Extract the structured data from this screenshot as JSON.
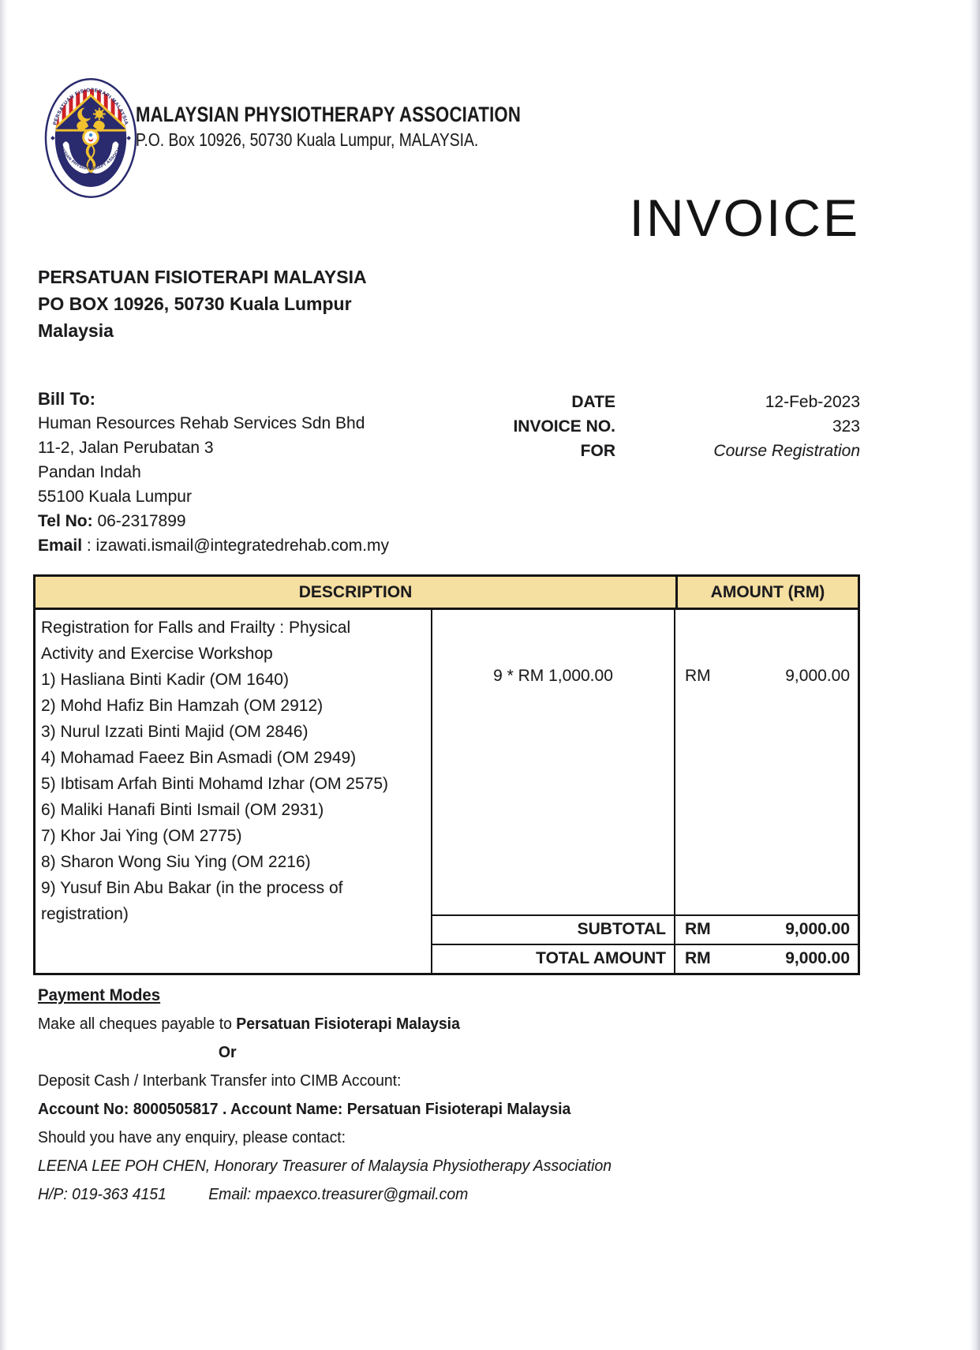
{
  "colors": {
    "table_header_bg": "#F5DFA1",
    "border": "#141414",
    "logo_navy": "#2A2A6E",
    "logo_red": "#CE2127",
    "logo_gold": "#F2C12E"
  },
  "header": {
    "org_name": "MALAYSIAN PHYSIOTHERAPY ASSOCIATION",
    "org_address": "P.O. Box 10926, 50730 Kuala Lumpur, MALAYSIA.",
    "doc_title": "INVOICE"
  },
  "logo": {
    "ring_top": "PERSATUAN FISIOTERAPI MALAYSIA",
    "ring_bottom": "MALAYSIAN PHYSIOTHERAPY ASSOCIATION"
  },
  "from_address": {
    "lines": [
      "PERSATUAN FISIOTERAPI MALAYSIA",
      "PO BOX 10926, 50730 Kuala Lumpur",
      "Malaysia"
    ]
  },
  "bill_to": {
    "label": "Bill To:",
    "lines": [
      "Human Resources Rehab Services Sdn Bhd",
      "11-2, Jalan Perubatan 3",
      "Pandan Indah",
      "55100 Kuala Lumpur"
    ],
    "tel_label": "Tel No:",
    "tel_value": "06-2317899",
    "email_label": "Email",
    "email_sep": " : ",
    "email_value": "izawati.ismail@integratedrehab.com.my"
  },
  "meta": {
    "rows": [
      {
        "label": "DATE",
        "value": "12-Feb-2023"
      },
      {
        "label": "INVOICE NO.",
        "value": "323"
      },
      {
        "label": "FOR",
        "value": "Course Registration"
      }
    ]
  },
  "table": {
    "header": {
      "description": "DESCRIPTION",
      "amount": "AMOUNT (RM)"
    },
    "item": {
      "description_lines": [
        "Registration for Falls and Frailty : Physical",
        "Activity and Exercise Workshop",
        "1) Hasliana Binti Kadir (OM 1640)",
        "2) Mohd Hafiz Bin Hamzah (OM 2912)",
        "3) Nurul Izzati Binti Majid (OM 2846)",
        "4) Mohamad Faeez Bin Asmadi (OM 2949)",
        "5) Ibtisam Arfah Binti Mohamd Izhar (OM 2575)",
        "6) Maliki Hanafi Binti Ismail (OM 2931)",
        "7) Khor Jai Ying (OM 2775)",
        "8) Sharon Wong Siu Ying (OM 2216)",
        "9) Yusuf Bin Abu Bakar (in the process of",
        "registration)"
      ],
      "quantity": "9 * RM 1,000.00",
      "currency": "RM",
      "amount": "9,000.00"
    },
    "subtotal": {
      "label": "SUBTOTAL",
      "currency": "RM",
      "value": "9,000.00"
    },
    "total": {
      "label": "TOTAL AMOUNT",
      "currency": "RM",
      "value": "9,000.00"
    }
  },
  "payment": {
    "heading": "Payment Modes",
    "cheque_prefix": "Make all cheques payable to ",
    "cheque_payee": "Persatuan Fisioterapi Malaysia",
    "or_label": "Or",
    "deposit_line": "Deposit Cash / Interbank Transfer into CIMB Account:",
    "account_line": "Account No: 8000505817 . Account Name: Persatuan Fisioterapi Malaysia",
    "enquiry_line": "Should you have any enquiry, please contact:",
    "treasurer_line": "LEENA LEE POH CHEN, Honorary Treasurer of Malaysia Physiotherapy Association",
    "hp_value": "H/P: 019-363 4151",
    "email_value": "Email: mpaexco.treasurer@gmail.com"
  }
}
